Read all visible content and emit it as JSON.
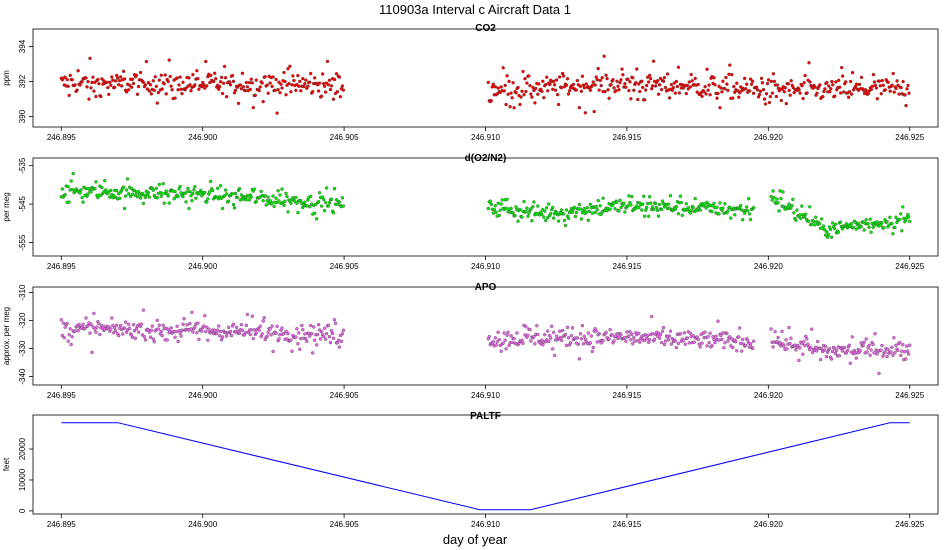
{
  "figure": {
    "title": "110903a   Interval c Aircraft Data 1",
    "xlabel": "day of year"
  },
  "chart_data": [
    {
      "type": "scatter",
      "title": "CO2",
      "ylabel": "ppm",
      "xlim": [
        246.894,
        246.926
      ],
      "ylim": [
        389.4,
        395.0
      ],
      "xticks": [
        "246.895",
        "246.900",
        "246.905",
        "246.910",
        "246.915",
        "246.920",
        "246.925"
      ],
      "yticks": [
        "390",
        "392",
        "394"
      ],
      "ytick_values": [
        390,
        392,
        394
      ],
      "color": "#ff0000",
      "segments": [
        [
          246.895,
          246.905
        ],
        [
          246.9101,
          246.925
        ]
      ],
      "baseline": 391.8,
      "spread": 0.9,
      "trend": [
        [
          246.895,
          391.9
        ],
        [
          246.905,
          391.8
        ],
        [
          246.91,
          391.5
        ],
        [
          246.915,
          391.9
        ],
        [
          246.92,
          391.5
        ],
        [
          246.925,
          391.6
        ]
      ]
    },
    {
      "type": "scatter",
      "title": "d(O2/N2)",
      "ylabel": "per meg",
      "xlim": [
        246.894,
        246.926
      ],
      "ylim": [
        -558.5,
        -533.0
      ],
      "xticks": [
        "246.895",
        "246.900",
        "246.905",
        "246.910",
        "246.915",
        "246.920",
        "246.925"
      ],
      "yticks": [
        "-535",
        "-545",
        "-555"
      ],
      "ytick_values": [
        -535,
        -545,
        -555
      ],
      "color": "#00ee00",
      "segments": [
        [
          246.895,
          246.905
        ],
        [
          246.9101,
          246.9195
        ],
        [
          246.9201,
          246.925
        ]
      ],
      "baseline": -543,
      "spread": 2.6,
      "trend": [
        [
          246.895,
          -541.5
        ],
        [
          246.9,
          -542.5
        ],
        [
          246.905,
          -545.0
        ],
        [
          246.9101,
          -545.5
        ],
        [
          246.912,
          -547.5
        ],
        [
          246.915,
          -545.5
        ],
        [
          246.9195,
          -546.5
        ],
        [
          246.9201,
          -543.0
        ],
        [
          246.922,
          -551.5
        ],
        [
          246.925,
          -549.0
        ]
      ]
    },
    {
      "type": "scatter",
      "title": "APO",
      "ylabel": "approx. per meg",
      "xlim": [
        246.894,
        246.926
      ],
      "ylim": [
        -343.0,
        -308.0
      ],
      "xticks": [
        "246.895",
        "246.900",
        "246.905",
        "246.910",
        "246.915",
        "246.920",
        "246.925"
      ],
      "yticks": [
        "-310",
        "-320",
        "-330",
        "-340"
      ],
      "ytick_values": [
        -310,
        -320,
        -330,
        -340
      ],
      "color": "#ee66ee",
      "segments": [
        [
          246.895,
          246.905
        ],
        [
          246.9101,
          246.9195
        ],
        [
          246.9201,
          246.925
        ]
      ],
      "baseline": -324,
      "spread": 4.5,
      "trend": [
        [
          246.895,
          -323.0
        ],
        [
          246.9,
          -323.5
        ],
        [
          246.905,
          -325.0
        ],
        [
          246.9101,
          -326.5
        ],
        [
          246.915,
          -326.0
        ],
        [
          246.9195,
          -327.5
        ],
        [
          246.9201,
          -327.0
        ],
        [
          246.922,
          -331.0
        ],
        [
          246.925,
          -330.0
        ]
      ]
    },
    {
      "type": "line",
      "title": "PALTF",
      "ylabel": "feet",
      "xlim": [
        246.894,
        246.926
      ],
      "ylim": [
        -1000,
        31000
      ],
      "xticks": [
        "246.895",
        "246.900",
        "246.905",
        "246.910",
        "246.915",
        "246.920",
        "246.925"
      ],
      "yticks": [
        "0",
        "10000",
        "20000"
      ],
      "ytick_values": [
        0,
        10000,
        20000
      ],
      "color": "#0000ff",
      "x": [
        246.895,
        246.897,
        246.9098,
        246.9116,
        246.9243,
        246.925
      ],
      "y": [
        28500,
        28500,
        400,
        400,
        28500,
        28500
      ]
    }
  ]
}
